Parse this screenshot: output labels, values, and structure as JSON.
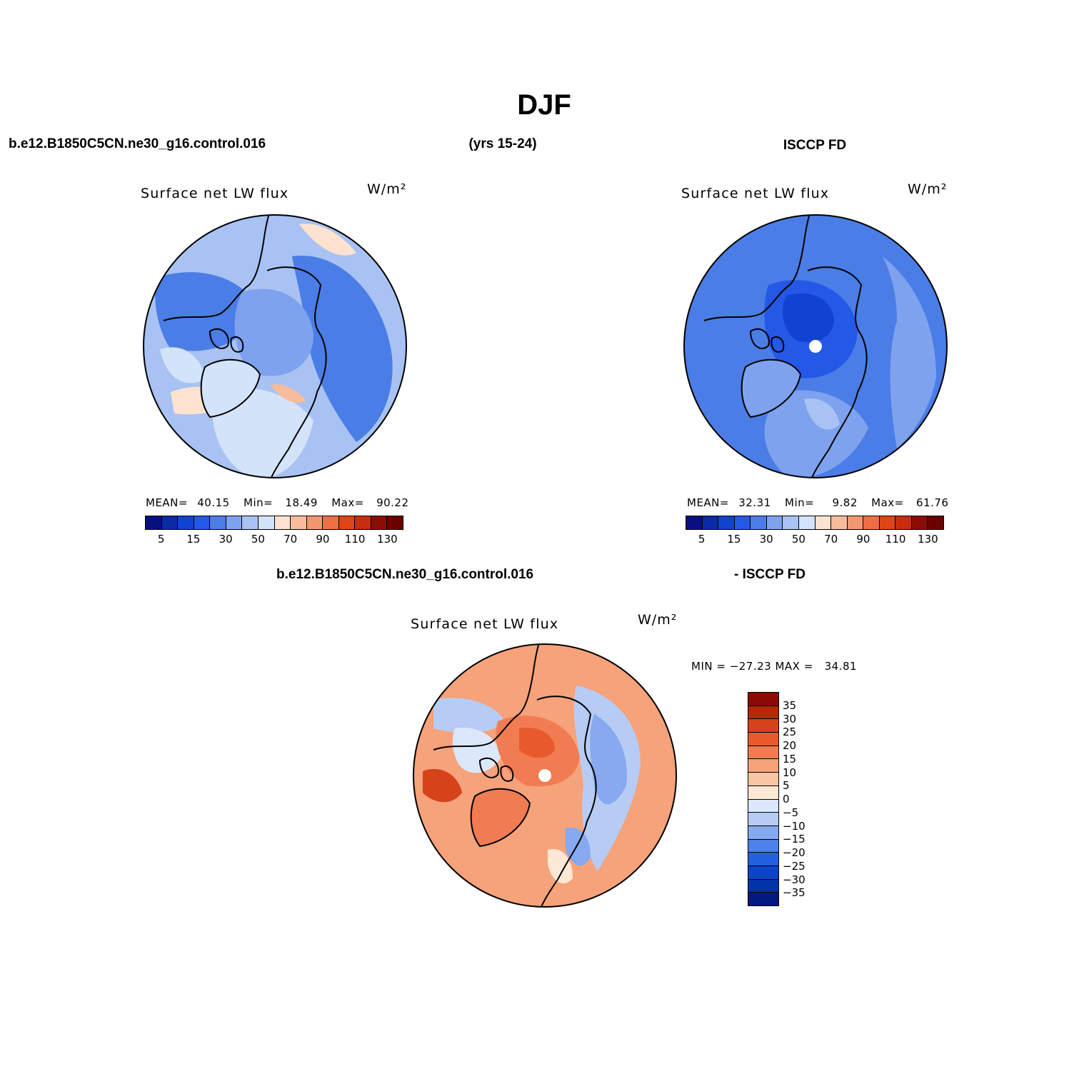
{
  "figure": {
    "season": "DJF",
    "model_case": "b.e12.B1850C5CN.ne30_g16.control.016",
    "years": "(yrs 15-24)",
    "obs_name": "ISCCP FD",
    "diff_model": "b.e12.B1850C5CN.ne30_g16.control.016",
    "diff_obs": "- ISCCP FD"
  },
  "panels": [
    {
      "id": "model",
      "title": "Surface net LW flux",
      "units": "W/m²",
      "stats": {
        "mean_label": "MEAN=",
        "mean": "40.15",
        "min_label": "Min=",
        "min": "18.49",
        "max_label": "Max=",
        "max": "90.22"
      },
      "colorbar": {
        "levels": [
          5,
          10,
          15,
          20,
          30,
          40,
          50,
          60,
          70,
          80,
          90,
          100,
          110,
          120,
          130
        ],
        "tick_labels": [
          "5",
          "15",
          "30",
          "50",
          "70",
          "90",
          "110",
          "130"
        ]
      }
    },
    {
      "id": "obs",
      "title": "Surface net LW flux",
      "units": "W/m²",
      "stats": {
        "mean_label": "MEAN=",
        "mean": "32.31",
        "min_label": "Min=",
        "min": "9.82",
        "max_label": "Max=",
        "max": "61.76"
      },
      "colorbar": {
        "levels": [
          5,
          10,
          15,
          20,
          30,
          40,
          50,
          60,
          70,
          80,
          90,
          100,
          110,
          120,
          130
        ],
        "tick_labels": [
          "5",
          "15",
          "30",
          "50",
          "70",
          "90",
          "110",
          "130"
        ]
      }
    },
    {
      "id": "diff",
      "title": "Surface net LW flux",
      "units": "W/m²",
      "minmax_text": "MIN = −27.23 MAX =   34.81",
      "colorbar": {
        "levels": [
          -35,
          -30,
          -25,
          -20,
          -15,
          -10,
          -5,
          0,
          5,
          10,
          15,
          20,
          25,
          30,
          35
        ],
        "tick_labels": [
          "−35",
          "−30",
          "−25",
          "−20",
          "−15",
          "−10",
          "−5",
          "0",
          "5",
          "10",
          "15",
          "20",
          "25",
          "30",
          "35"
        ]
      }
    }
  ],
  "colors": {
    "abs_scale": [
      "#08107f",
      "#0a2aa6",
      "#1242d0",
      "#2458e6",
      "#4a7de6",
      "#7ea2ee",
      "#a8c2f3",
      "#d2e3fa",
      "#fde3cf",
      "#f8bc9d",
      "#f19870",
      "#ee6f45",
      "#de4618",
      "#c72d0e",
      "#8c0c06",
      "#6b0000"
    ],
    "diff_scale": [
      "#001a80",
      "#0033a8",
      "#0a45c8",
      "#2260e0",
      "#4d82ea",
      "#86a9f0",
      "#b6ccf5",
      "#dbe8fb",
      "#fde8d6",
      "#f9c6a4",
      "#f6a27a",
      "#f17c52",
      "#e85a2c",
      "#d6421a",
      "#b52707",
      "#8c0a06"
    ]
  }
}
